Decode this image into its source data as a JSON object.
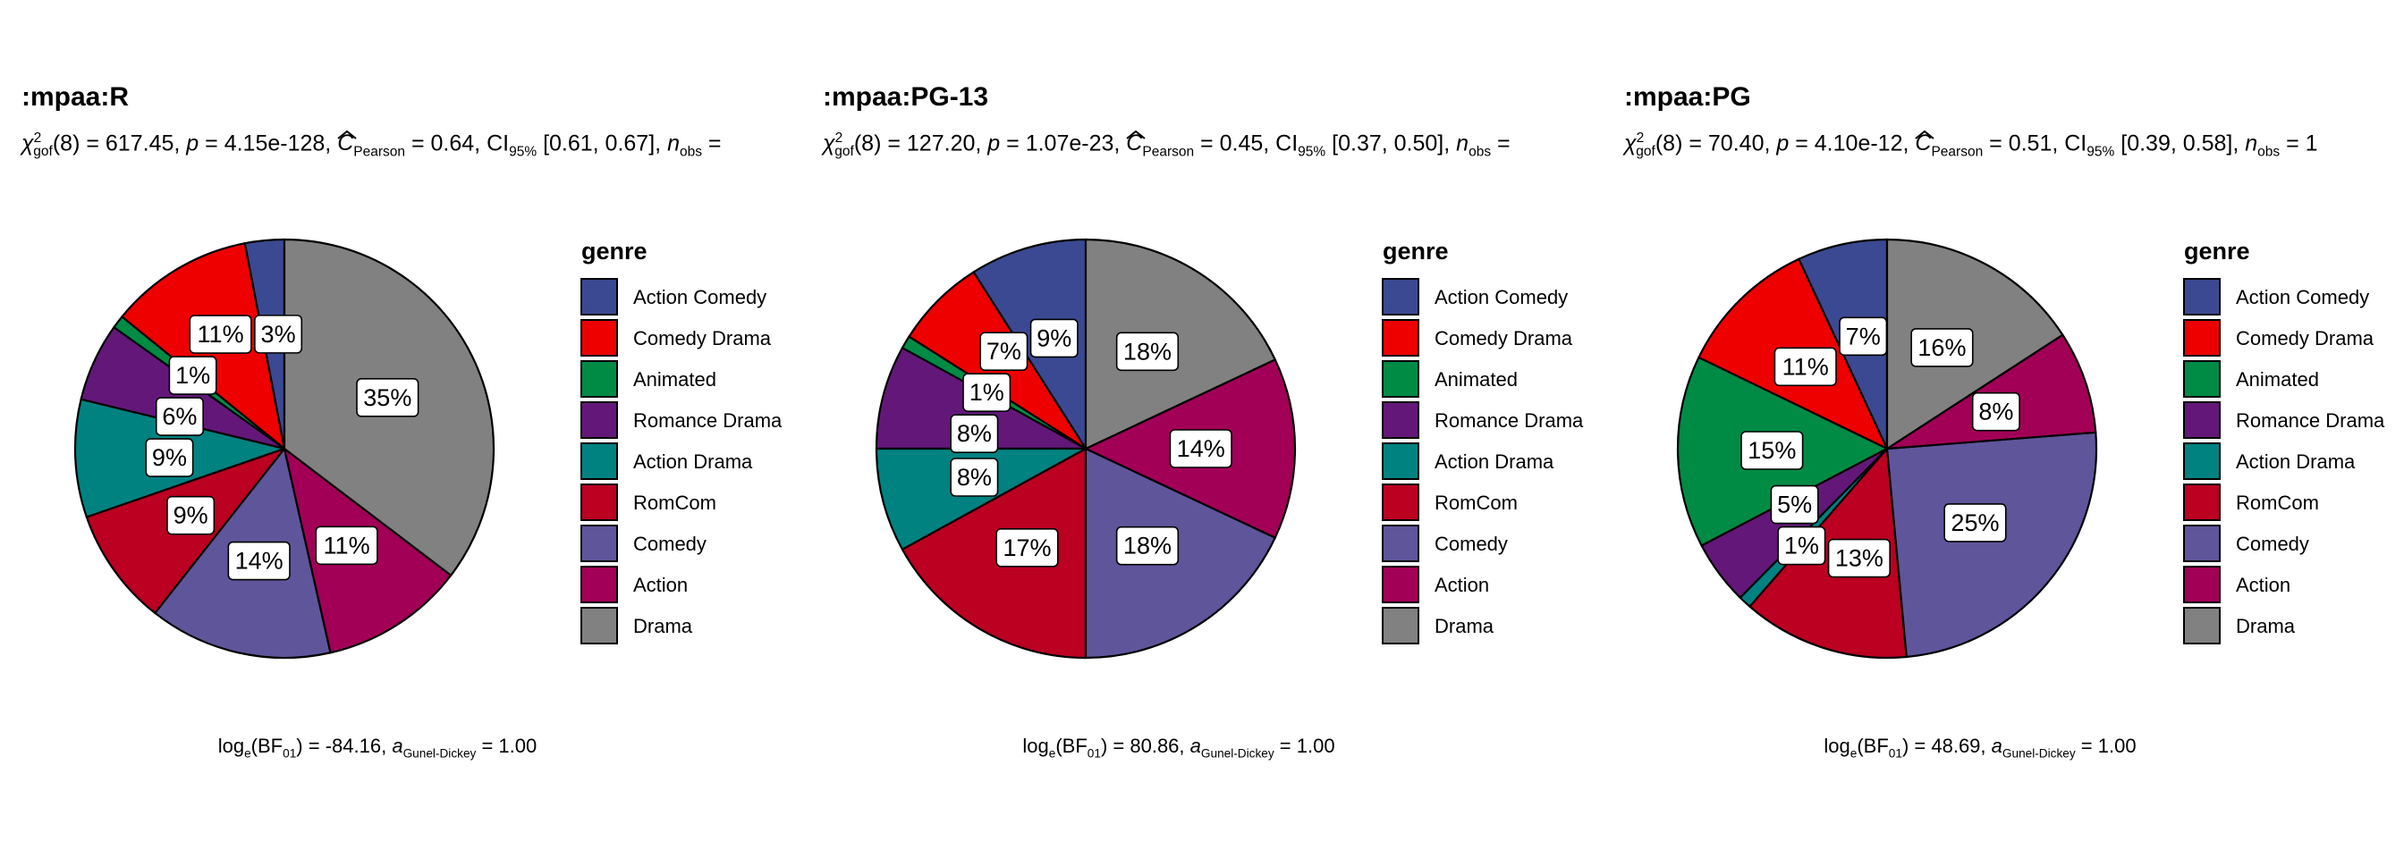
{
  "chart_data": [
    {
      "type": "pie",
      "title": ":mpaa:R",
      "stats": {
        "df": "8",
        "statistic": "617.45",
        "p_value": "4.15e-128",
        "effect_size": "0.64",
        "ci": "[0.61, 0.67]",
        "n_obs": ""
      },
      "caption": {
        "bf": "-84.16",
        "a": "1.00"
      },
      "legend_title": "genre",
      "categories": [
        "Action Comedy",
        "Comedy Drama",
        "Animated",
        "Romance Drama",
        "Action Drama",
        "RomCom",
        "Comedy",
        "Action",
        "Drama"
      ],
      "values": [
        3,
        11,
        1,
        6,
        9,
        9,
        14,
        11,
        35
      ],
      "labels": [
        "3%",
        "11%",
        "1%",
        "6%",
        "9%",
        "9%",
        "14%",
        "11%",
        "35%"
      ]
    },
    {
      "type": "pie",
      "title": ":mpaa:PG-13",
      "stats": {
        "df": "8",
        "statistic": "127.20",
        "p_value": "1.07e-23",
        "effect_size": "0.45",
        "ci": "[0.37, 0.50]",
        "n_obs": ""
      },
      "caption": {
        "bf": "80.86",
        "a": "1.00"
      },
      "legend_title": "genre",
      "categories": [
        "Action Comedy",
        "Comedy Drama",
        "Animated",
        "Romance Drama",
        "Action Drama",
        "RomCom",
        "Comedy",
        "Action",
        "Drama"
      ],
      "values": [
        9,
        7,
        1,
        8,
        8,
        17,
        18,
        14,
        18
      ],
      "labels": [
        "9%",
        "7%",
        "1%",
        "8%",
        "8%",
        "17%",
        "18%",
        "14%",
        "18%"
      ]
    },
    {
      "type": "pie",
      "title": ":mpaa:PG",
      "stats": {
        "df": "8",
        "statistic": "70.40",
        "p_value": "4.10e-12",
        "effect_size": "0.51",
        "ci": "[0.39, 0.58]",
        "n_obs": "1"
      },
      "caption": {
        "bf": "48.69",
        "a": "1.00"
      },
      "legend_title": "genre",
      "categories": [
        "Action Comedy",
        "Comedy Drama",
        "Animated",
        "Romance Drama",
        "Action Drama",
        "RomCom",
        "Comedy",
        "Action",
        "Drama"
      ],
      "values": [
        7,
        11,
        15,
        5,
        1,
        13,
        25,
        8,
        16
      ],
      "labels": [
        "7%",
        "11%",
        "15%",
        "5%",
        "1%",
        "13%",
        "25%",
        "8%",
        "16%"
      ]
    }
  ],
  "colors": {
    "Action Comedy": "#3B4992",
    "Comedy Drama": "#EE0000",
    "Animated": "#008B45",
    "Romance Drama": "#631879",
    "Action Drama": "#008280",
    "RomCom": "#BB0021",
    "Comedy": "#5F559B",
    "Action": "#A20056",
    "Drama": "#808180"
  }
}
